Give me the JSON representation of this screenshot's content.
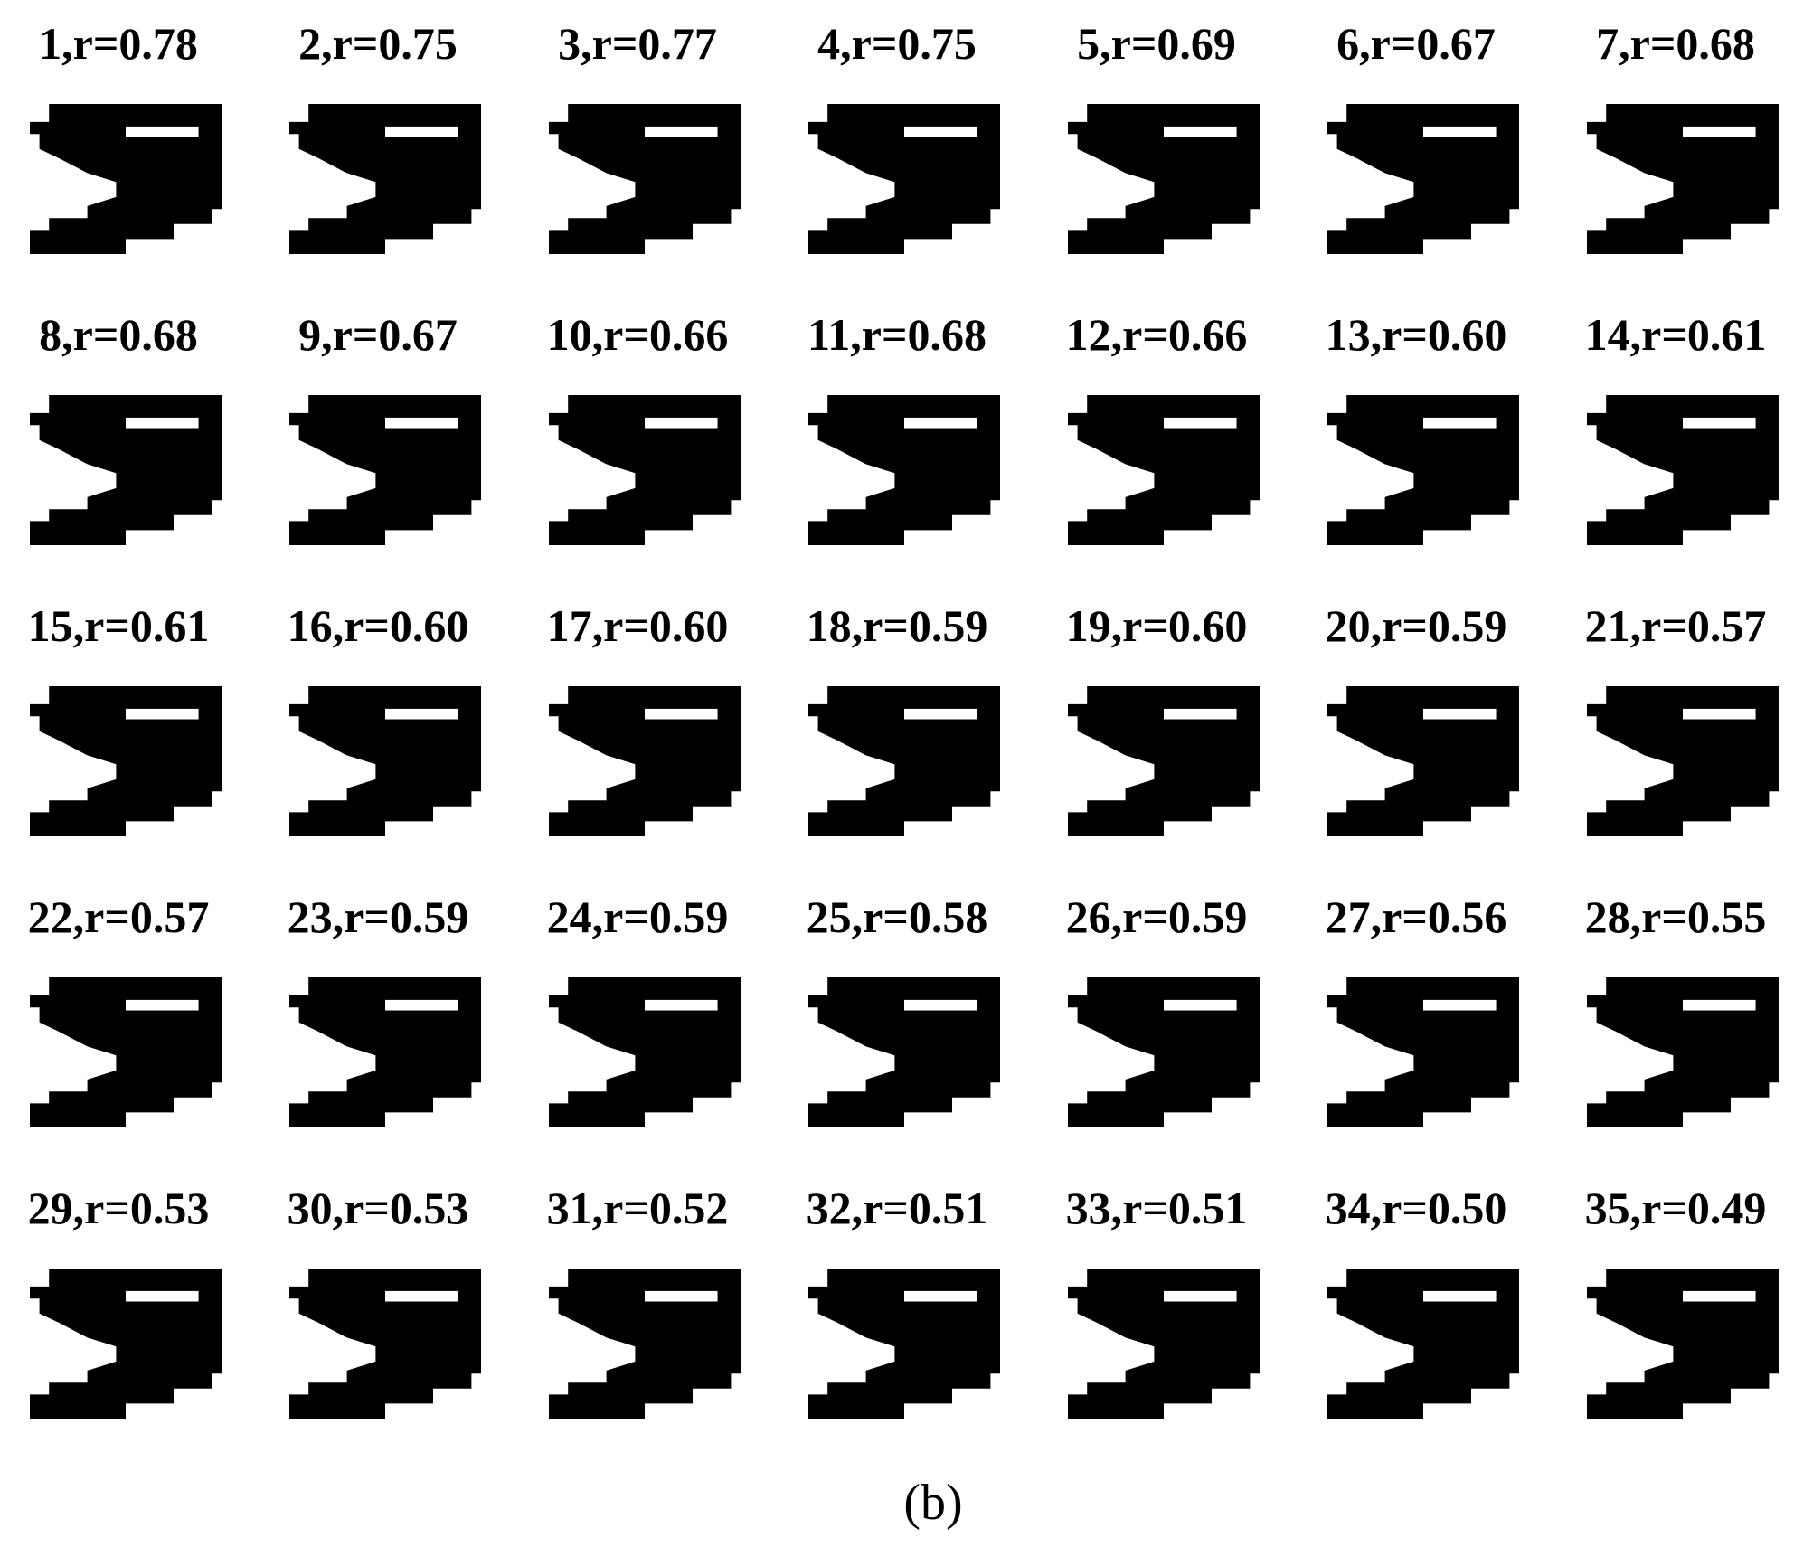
{
  "labels": [
    "1,r=0.78",
    "2,r=0.75",
    "3,r=0.77",
    "4,r=0.75",
    "5,r=0.69",
    "6,r=0.67",
    "7,r=0.68",
    "8,r=0.68",
    "9,r=0.67",
    "10,r=0.66",
    "11,r=0.68",
    "12,r=0.66",
    "13,r=0.60",
    "14,r=0.61",
    "15,r=0.61",
    "16,r=0.60",
    "17,r=0.60",
    "18,r=0.59",
    "19,r=0.60",
    "20,r=0.59",
    "21,r=0.57",
    "22,r=0.57",
    "23,r=0.59",
    "24,r=0.59",
    "25,r=0.58",
    "26,r=0.59",
    "27,r=0.56",
    "28,r=0.55",
    "29,r=0.53",
    "30,r=0.53",
    "31,r=0.52",
    "32,r=0.51",
    "33,r=0.51",
    "34,r=0.50",
    "35,r=0.49"
  ],
  "caption": "(b)"
}
